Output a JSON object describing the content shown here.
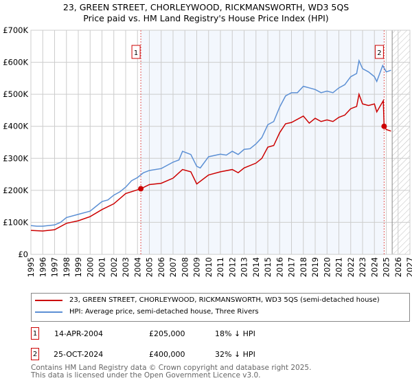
{
  "chart_data": {
    "type": "line",
    "title": "23, GREEN STREET, CHORLEYWOOD, RICKMANSWORTH, WD3 5QS",
    "subtitle": "Price paid vs. HM Land Registry's House Price Index (HPI)",
    "xlim": [
      1995,
      2027
    ],
    "ylim": [
      0,
      700000
    ],
    "xticks": [
      "1995",
      "1996",
      "1997",
      "1998",
      "1999",
      "2000",
      "2001",
      "2002",
      "2003",
      "2004",
      "2005",
      "2006",
      "2007",
      "2008",
      "2009",
      "2010",
      "2011",
      "2012",
      "2013",
      "2014",
      "2015",
      "2016",
      "2017",
      "2018",
      "2019",
      "2020",
      "2021",
      "2022",
      "2023",
      "2024",
      "2025",
      "2026",
      "2027"
    ],
    "yticks": [
      {
        "v": 0,
        "l": "£0"
      },
      {
        "v": 100000,
        "l": "£100K"
      },
      {
        "v": 200000,
        "l": "£200K"
      },
      {
        "v": 300000,
        "l": "£300K"
      },
      {
        "v": 400000,
        "l": "£400K"
      },
      {
        "v": 500000,
        "l": "£500K"
      },
      {
        "v": 600000,
        "l": "£600K"
      },
      {
        "v": 700000,
        "l": "£700K"
      }
    ],
    "series": [
      {
        "name": "23, GREEN STREET, CHORLEYWOOD, RICKMANSWORTH, WD3 5QS (semi-detached house)",
        "color": "#cc0000",
        "x": [
          1995,
          1996,
          1997,
          1998,
          1999,
          2000,
          2001,
          2002,
          2003,
          2004.28,
          2005,
          2006,
          2007,
          2007.8,
          2008.5,
          2009,
          2010,
          2011,
          2012,
          2012.5,
          2013,
          2014,
          2014.5,
          2015,
          2015.5,
          2016,
          2016.5,
          2017,
          2018,
          2018.5,
          2019,
          2019.5,
          2020,
          2020.5,
          2021,
          2021.5,
          2022,
          2022.5,
          2022.7,
          2023,
          2023.5,
          2024,
          2024.2,
          2024.75,
          2024.82,
          2025,
          2025.4
        ],
        "y": [
          75000,
          73000,
          77000,
          97000,
          105000,
          118000,
          140000,
          158000,
          190000,
          205000,
          218000,
          222000,
          238000,
          265000,
          258000,
          220000,
          248000,
          258000,
          265000,
          255000,
          270000,
          285000,
          300000,
          335000,
          340000,
          380000,
          408000,
          412000,
          432000,
          410000,
          425000,
          415000,
          420000,
          415000,
          428000,
          435000,
          455000,
          462000,
          500000,
          470000,
          465000,
          470000,
          445000,
          480000,
          400000,
          390000,
          385000
        ]
      },
      {
        "name": "HPI: Average price, semi-detached house, Three Rivers",
        "color": "#5b8fd4",
        "x": [
          1995,
          1995.5,
          1996,
          1997,
          1997.5,
          1998,
          1999,
          2000,
          2000.5,
          2001,
          2001.5,
          2002,
          2002.5,
          2003,
          2003.5,
          2004,
          2004.5,
          2005,
          2006,
          2007,
          2007.5,
          2007.8,
          2008.5,
          2009,
          2009.3,
          2010,
          2011,
          2011.5,
          2012,
          2012.5,
          2013,
          2013.5,
          2014,
          2014.5,
          2015,
          2015.5,
          2016,
          2016.5,
          2017,
          2017.5,
          2018,
          2018.5,
          2019,
          2019.5,
          2020,
          2020.5,
          2021,
          2021.5,
          2022,
          2022.5,
          2022.7,
          2023,
          2023.5,
          2024,
          2024.2,
          2024.7,
          2025,
          2025.4
        ],
        "y": [
          90000,
          88000,
          88000,
          92000,
          100000,
          115000,
          125000,
          135000,
          150000,
          165000,
          170000,
          185000,
          195000,
          210000,
          230000,
          240000,
          255000,
          262000,
          268000,
          288000,
          295000,
          322000,
          312000,
          275000,
          270000,
          305000,
          313000,
          310000,
          322000,
          312000,
          328000,
          330000,
          345000,
          365000,
          405000,
          415000,
          460000,
          495000,
          505000,
          505000,
          525000,
          520000,
          515000,
          505000,
          510000,
          505000,
          520000,
          530000,
          555000,
          565000,
          605000,
          580000,
          570000,
          555000,
          540000,
          590000,
          570000,
          575000
        ]
      }
    ],
    "sales": [
      {
        "label": "1",
        "x": 2004.28,
        "y": 205000,
        "date": "14-APR-2004",
        "price": "£205,000",
        "hpi": "18% ↓ HPI"
      },
      {
        "label": "2",
        "x": 2024.82,
        "y": 400000,
        "date": "25-OCT-2024",
        "price": "£400,000",
        "hpi": "32% ↓ HPI"
      }
    ],
    "forecast_start": 2025.5
  },
  "footer": {
    "line1": "Contains HM Land Registry data © Crown copyright and database right 2025.",
    "line2": "This data is licensed under the Open Government Licence v3.0."
  }
}
